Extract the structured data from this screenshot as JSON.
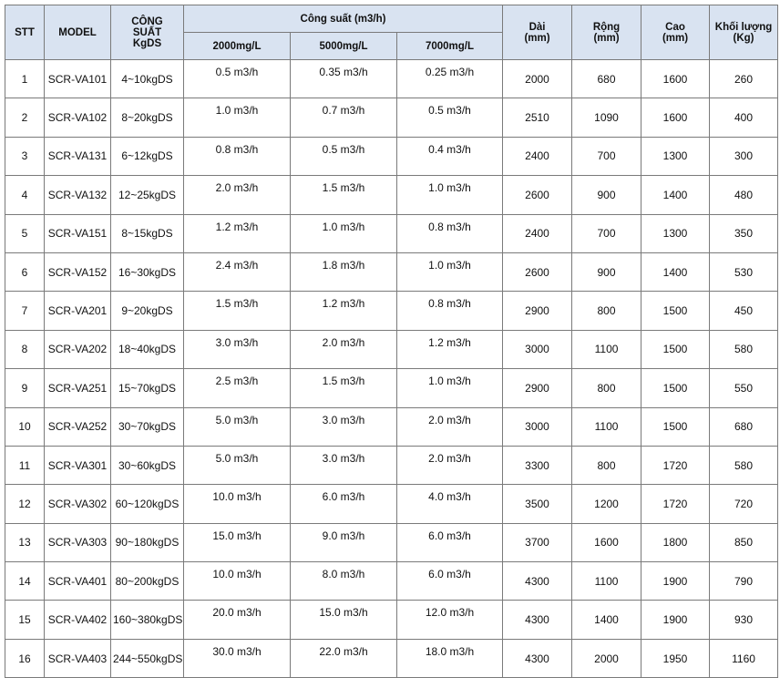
{
  "table": {
    "header": {
      "stt": "STT",
      "model": "MODEL",
      "kgds": "CÔNG\nSUẤT\nKgDS",
      "capacity": "Công suất (m3/h)",
      "sub": [
        "2000mg/L",
        "5000mg/L",
        "7000mg/L"
      ],
      "length": "Dài\n(mm)",
      "width": "Rộng\n(mm)",
      "height": "Cao\n(mm)",
      "weight": "Khối lượng\n(Kg)"
    },
    "rows": [
      [
        "1",
        "SCR-VA101",
        "4~10kgDS",
        "0.5 m3/h",
        "0.35 m3/h",
        "0.25 m3/h",
        "2000",
        "680",
        "1600",
        "260"
      ],
      [
        "2",
        "SCR-VA102",
        "8~20kgDS",
        "1.0 m3/h",
        "0.7 m3/h",
        "0.5 m3/h",
        "2510",
        "1090",
        "1600",
        "400"
      ],
      [
        "3",
        "SCR-VA131",
        "6~12kgDS",
        "0.8 m3/h",
        "0.5 m3/h",
        "0.4 m3/h",
        "2400",
        "700",
        "1300",
        "300"
      ],
      [
        "4",
        "SCR-VA132",
        "12~25kgDS",
        "2.0 m3/h",
        "1.5 m3/h",
        "1.0 m3/h",
        "2600",
        "900",
        "1400",
        "480"
      ],
      [
        "5",
        "SCR-VA151",
        "8~15kgDS",
        "1.2 m3/h",
        "1.0 m3/h",
        "0.8 m3/h",
        "2400",
        "700",
        "1300",
        "350"
      ],
      [
        "6",
        "SCR-VA152",
        "16~30kgDS",
        "2.4 m3/h",
        "1.8 m3/h",
        "1.0 m3/h",
        "2600",
        "900",
        "1400",
        "530"
      ],
      [
        "7",
        "SCR-VA201",
        "9~20kgDS",
        "1.5 m3/h",
        "1.2 m3/h",
        "0.8 m3/h",
        "2900",
        "800",
        "1500",
        "450"
      ],
      [
        "8",
        "SCR-VA202",
        "18~40kgDS",
        "3.0 m3/h",
        "2.0 m3/h",
        "1.2 m3/h",
        "3000",
        "1100",
        "1500",
        "580"
      ],
      [
        "9",
        "SCR-VA251",
        "15~70kgDS",
        "2.5 m3/h",
        "1.5 m3/h",
        "1.0 m3/h",
        "2900",
        "800",
        "1500",
        "550"
      ],
      [
        "10",
        "SCR-VA252",
        "30~70kgDS",
        "5.0 m3/h",
        "3.0 m3/h",
        "2.0 m3/h",
        "3000",
        "1100",
        "1500",
        "680"
      ],
      [
        "11",
        "SCR-VA301",
        "30~60kgDS",
        "5.0 m3/h",
        "3.0 m3/h",
        "2.0 m3/h",
        "3300",
        "800",
        "1720",
        "580"
      ],
      [
        "12",
        "SCR-VA302",
        "60~120kgDS",
        "10.0 m3/h",
        "6.0 m3/h",
        "4.0 m3/h",
        "3500",
        "1200",
        "1720",
        "720"
      ],
      [
        "13",
        "SCR-VA303",
        "90~180kgDS",
        "15.0 m3/h",
        "9.0 m3/h",
        "6.0 m3/h",
        "3700",
        "1600",
        "1800",
        "850"
      ],
      [
        "14",
        "SCR-VA401",
        "80~200kgDS",
        "10.0 m3/h",
        "8.0 m3/h",
        "6.0 m3/h",
        "4300",
        "1100",
        "1900",
        "790"
      ],
      [
        "15",
        "SCR-VA402",
        "160~380kgDS",
        "20.0 m3/h",
        "15.0 m3/h",
        "12.0 m3/h",
        "4300",
        "1400",
        "1900",
        "930"
      ],
      [
        "16",
        "SCR-VA403",
        "244~550kgDS",
        "30.0 m3/h",
        "22.0 m3/h",
        "18.0 m3/h",
        "4300",
        "2000",
        "1950",
        "1160"
      ]
    ]
  }
}
